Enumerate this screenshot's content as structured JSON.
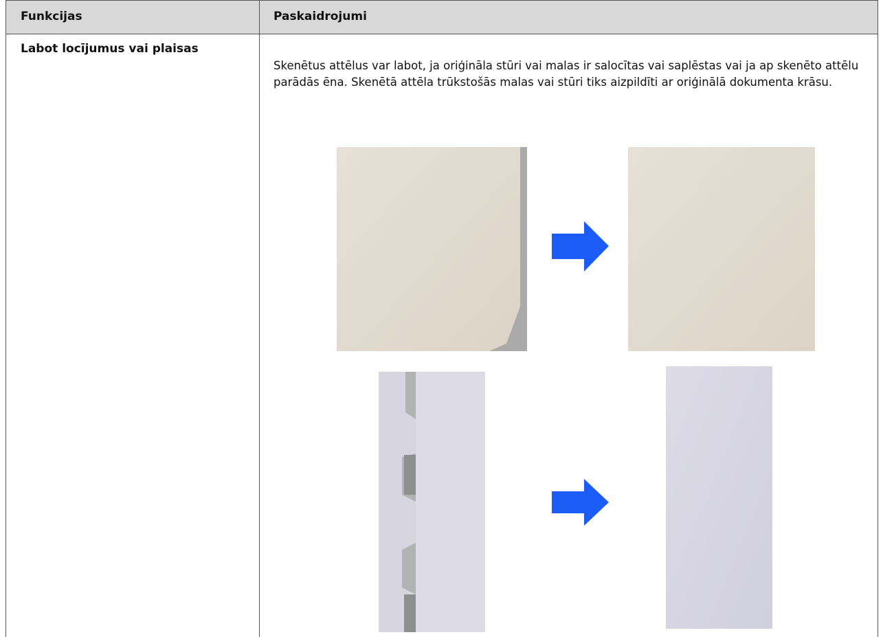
{
  "table": {
    "columns": [
      "Funkcijas",
      "Paskaidrojumi"
    ],
    "rows": [
      [
        "Labot locījumus vai plaisas",
        "Skenētus attēlus var labot, ja oriģināla stūri vai malas ir salocītas vai saplēstas vai ja ap skenēto attēlu parādās ēna. Skenētā attēla trūkstošās malas vai stūri tiks aizpildīti ar oriģinālā dokumenta krāsu."
      ]
    ]
  }
}
